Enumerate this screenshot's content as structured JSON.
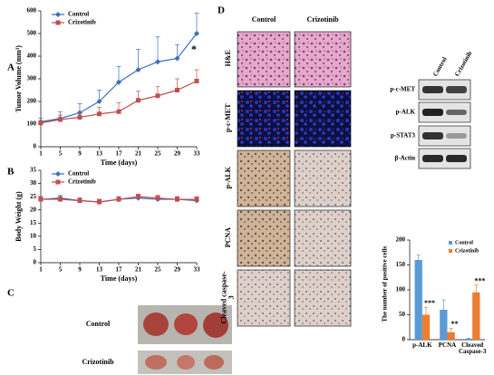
{
  "panels": {
    "a": "A",
    "b": "B",
    "c": "C",
    "d": "D"
  },
  "chart_data": [
    {
      "type": "line",
      "xlabel": "Time (days)",
      "ylabel": "Tumor Volume (mm³)",
      "legend": "upper left",
      "x": [
        1,
        5,
        9,
        13,
        17,
        21,
        25,
        29,
        33
      ],
      "xlim": [
        1,
        33
      ],
      "xticks": [
        1,
        5,
        9,
        13,
        17,
        21,
        25,
        29,
        33
      ],
      "ylim": [
        0,
        600
      ],
      "yticks": [
        0,
        100,
        200,
        300,
        400,
        500,
        600
      ],
      "annotation": "*",
      "series": [
        {
          "name": "Control",
          "color": "#3b6fb6",
          "marker": "diamond",
          "values": [
            110,
            125,
            150,
            200,
            285,
            340,
            375,
            390,
            500
          ],
          "errors": [
            15,
            30,
            40,
            50,
            70,
            90,
            110,
            60,
            90
          ]
        },
        {
          "name": "Crizotinib",
          "color": "#c0504d",
          "marker": "square",
          "values": [
            105,
            120,
            130,
            145,
            155,
            205,
            225,
            250,
            290
          ],
          "errors": [
            10,
            20,
            25,
            30,
            40,
            40,
            40,
            50,
            50
          ]
        }
      ]
    },
    {
      "type": "line",
      "xlabel": "Time (days)",
      "ylabel": "Body Weight (g)",
      "legend": "upper left",
      "x": [
        1,
        5,
        9,
        13,
        17,
        21,
        25,
        29,
        33
      ],
      "xlim": [
        1,
        33
      ],
      "xticks": [
        1,
        5,
        9,
        13,
        17,
        21,
        25,
        29,
        33
      ],
      "ylim": [
        0,
        35
      ],
      "yticks": [
        0,
        5,
        10,
        15,
        20,
        25,
        30,
        35
      ],
      "series": [
        {
          "name": "Control",
          "color": "#3b6fb6",
          "marker": "diamond",
          "values": [
            24,
            24.5,
            23.5,
            23,
            24,
            24.5,
            24,
            24,
            23.5
          ],
          "errors": [
            1,
            1,
            1,
            1,
            1,
            1,
            1,
            1,
            1
          ]
        },
        {
          "name": "Crizotinib",
          "color": "#c0504d",
          "marker": "square",
          "values": [
            24,
            24,
            23.5,
            23,
            24,
            25,
            24.5,
            24,
            24
          ],
          "errors": [
            1,
            1,
            1,
            1,
            1,
            1,
            1,
            1,
            1
          ]
        }
      ]
    },
    {
      "type": "bar",
      "ylabel": "The number of positive cells",
      "legend": "upper right",
      "categories": [
        "p-ALK",
        "PCNA",
        "Cleaved Caspase-3"
      ],
      "ylim": [
        0,
        200
      ],
      "yticks": [
        0,
        50,
        100,
        150,
        200
      ],
      "annotations": [
        "***",
        "**",
        "***"
      ],
      "series": [
        {
          "name": "Control",
          "color": "#5b9bd5",
          "values": [
            160,
            60,
            2
          ],
          "errors": [
            10,
            20,
            1
          ]
        },
        {
          "name": "Crizotinib",
          "color": "#ed7d31",
          "values": [
            50,
            15,
            95
          ],
          "errors": [
            15,
            8,
            15
          ]
        }
      ]
    }
  ],
  "tumor_photos": {
    "rows": [
      "Control",
      "Crizotinib"
    ]
  },
  "histology": {
    "columns": [
      "Control",
      "Crizotinib"
    ],
    "rows": [
      "H&E",
      "p-c-MET",
      "p-ALK",
      "PCNA",
      "Cleaved caspase-3"
    ]
  },
  "western_blot": {
    "columns": [
      "Control",
      "Crizotinib"
    ],
    "rows": [
      "p-c-MET",
      "p-ALK",
      "p-STAT3",
      "β-Actin"
    ]
  }
}
